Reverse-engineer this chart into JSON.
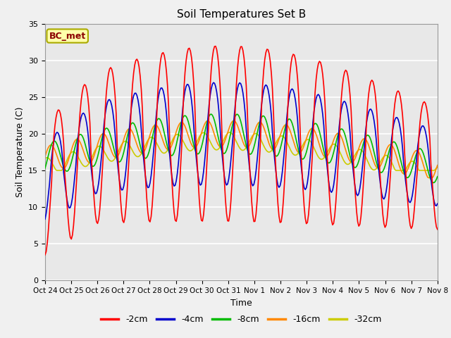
{
  "title": "Soil Temperatures Set B",
  "xlabel": "Time",
  "ylabel": "Soil Temperature (C)",
  "annotation": "BC_met",
  "ylim": [
    0,
    35
  ],
  "x_tick_labels": [
    "Oct 24",
    "Oct 25",
    "Oct 26",
    "Oct 27",
    "Oct 28",
    "Oct 29",
    "Oct 30",
    "Oct 31",
    "Nov 1",
    "Nov 2",
    "Nov 3",
    "Nov 4",
    "Nov 5",
    "Nov 6",
    "Nov 7",
    "Nov 8"
  ],
  "legend_labels": [
    "-2cm",
    "-4cm",
    "-8cm",
    "-16cm",
    "-32cm"
  ],
  "line_colors": [
    "#ff0000",
    "#0000cc",
    "#00bb00",
    "#ff8800",
    "#cccc00"
  ],
  "plot_bg_color": "#e8e8e8",
  "fig_bg_color": "#f0f0f0",
  "figsize": [
    6.4,
    4.8
  ],
  "dpi": 100
}
